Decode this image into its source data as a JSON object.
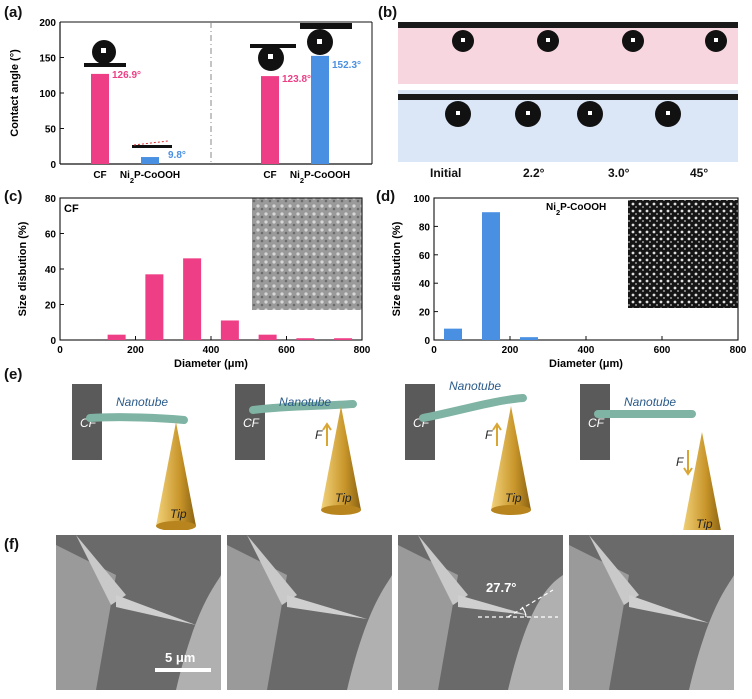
{
  "panels": {
    "a": "(a)",
    "b": "(b)",
    "c": "(c)",
    "d": "(d)",
    "e": "(e)",
    "f": "(f)"
  },
  "colors": {
    "pink": "#ee3e86",
    "blue": "#4a90e2",
    "tip_gold": "#d9a634",
    "nanotube": "#7fb3a3",
    "cf_block": "#5a5a5a"
  },
  "chart_data": [
    {
      "type": "bar",
      "panel": "a",
      "ylabel": "Contact angle (°)",
      "ylim": [
        0,
        200
      ],
      "yticks": [
        0,
        50,
        100,
        150,
        200
      ],
      "categories": [
        "CF",
        "Ni2P-CoOOH",
        "CF",
        "Ni2P-CoOOH"
      ],
      "category_labels": [
        {
          "main": "CF",
          "sub": "",
          "post": ""
        },
        {
          "main": "Ni",
          "sub": "2",
          "post": "P-CoOOH"
        },
        {
          "main": "CF",
          "sub": "",
          "post": ""
        },
        {
          "main": "Ni",
          "sub": "2",
          "post": "P-CoOOH"
        }
      ],
      "values": [
        126.9,
        9.8,
        123.8,
        152.3
      ],
      "value_labels": [
        "126.9°",
        "9.8°",
        "123.8°",
        "152.3°"
      ],
      "bar_colors": [
        "#ee3e86",
        "#4a90e2",
        "#ee3e86",
        "#4a90e2"
      ]
    },
    {
      "type": "bar",
      "panel": "c",
      "annotation": "CF",
      "xlabel": "Diameter (μm)",
      "ylabel": "Size disbution (%)",
      "xlim": [
        0,
        800
      ],
      "ylim": [
        0,
        80
      ],
      "xticks": [
        0,
        200,
        400,
        600,
        800
      ],
      "yticks": [
        0,
        20,
        40,
        60,
        80
      ],
      "x": [
        150,
        250,
        350,
        450,
        550,
        650,
        750
      ],
      "values": [
        3,
        37,
        46,
        11,
        3,
        1,
        1
      ],
      "color": "#ee3e86"
    },
    {
      "type": "bar",
      "panel": "d",
      "annotation": {
        "main": "Ni",
        "sub": "2",
        "post": "P-CoOOH"
      },
      "xlabel": "Diameter (μm)",
      "ylabel": "Size disbution (%)",
      "xlim": [
        0,
        800
      ],
      "ylim": [
        0,
        100
      ],
      "xticks": [
        0,
        200,
        400,
        600,
        800
      ],
      "yticks": [
        0,
        20,
        40,
        60,
        80,
        100
      ],
      "x": [
        50,
        150,
        250
      ],
      "values": [
        8,
        90,
        2
      ],
      "color": "#4a90e2"
    }
  ],
  "panel_b": {
    "tilt_labels": [
      "Initial",
      "2.2°",
      "3.0°",
      "45°"
    ]
  },
  "panel_e": {
    "cf_label": "CF",
    "nanotube_label": "Nanotube",
    "tip_label": "Tip",
    "force_label": "F"
  },
  "panel_f": {
    "angle_label": "27.7°",
    "scalebar_label": "5 μm"
  }
}
